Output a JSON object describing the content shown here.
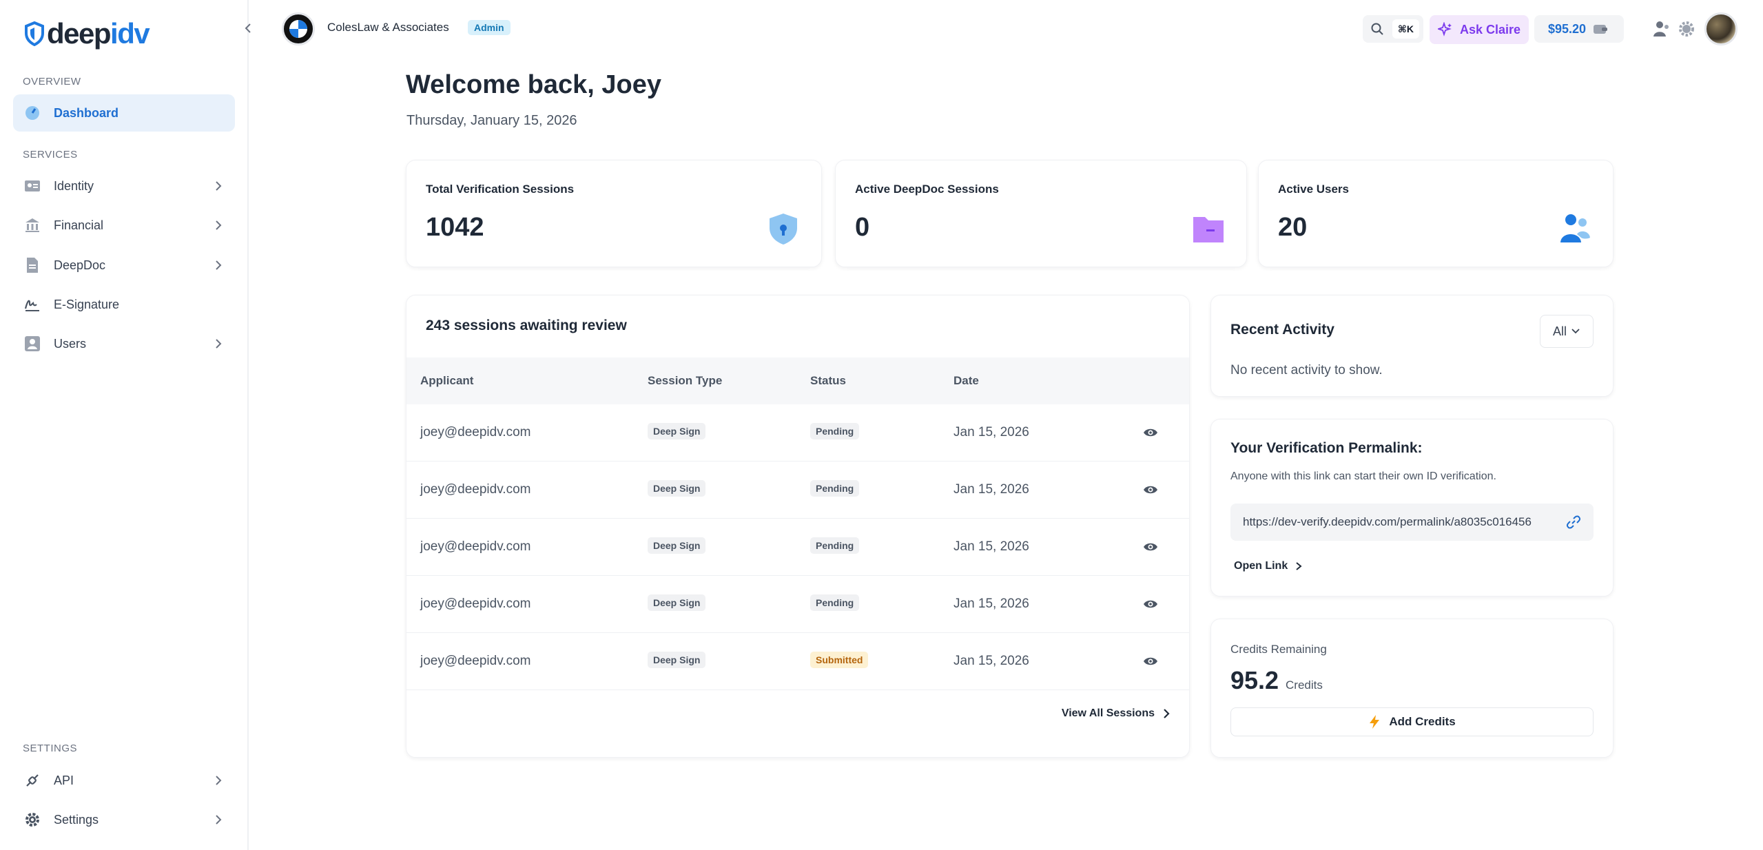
{
  "brand": {
    "logo_part1": "deep",
    "logo_part2": "idv"
  },
  "sidebar": {
    "overview_label": "OVERVIEW",
    "services_label": "SERVICES",
    "settings_label": "SETTINGS",
    "items": [
      {
        "label": "Dashboard",
        "icon": "gauge-icon"
      },
      {
        "label": "Identity",
        "icon": "id-card-icon"
      },
      {
        "label": "Financial",
        "icon": "bank-icon"
      },
      {
        "label": "DeepDoc",
        "icon": "document-icon"
      },
      {
        "label": "E-Signature",
        "icon": "signature-icon"
      },
      {
        "label": "Users",
        "icon": "user-icon"
      },
      {
        "label": "API",
        "icon": "plug-icon"
      },
      {
        "label": "Settings",
        "icon": "gear-icon"
      }
    ]
  },
  "topbar": {
    "org_name": "ColesLaw & Associates",
    "role_badge": "Admin",
    "search_shortcut": "⌘K",
    "ask_label": "Ask Claire",
    "credit_balance": "$95.20"
  },
  "main": {
    "welcome": "Welcome back, Joey",
    "date": "Thursday, January 15, 2026",
    "stats": [
      {
        "title": "Total Verification Sessions",
        "value": "1042",
        "color": "#8ec5f2"
      },
      {
        "title": "Active DeepDoc Sessions",
        "value": "0",
        "color": "#c084fc"
      },
      {
        "title": "Active Users",
        "value": "20",
        "color": "#1f7ae0"
      }
    ],
    "sessions": {
      "title": "243 sessions awaiting review",
      "columns": [
        "Applicant",
        "Session Type",
        "Status",
        "Date"
      ],
      "rows": [
        {
          "applicant": "joey@deepidv.com",
          "type": "Deep Sign",
          "status": "Pending",
          "date": "Jan 15, 2026"
        },
        {
          "applicant": "joey@deepidv.com",
          "type": "Deep Sign",
          "status": "Pending",
          "date": "Jan 15, 2026"
        },
        {
          "applicant": "joey@deepidv.com",
          "type": "Deep Sign",
          "status": "Pending",
          "date": "Jan 15, 2026"
        },
        {
          "applicant": "joey@deepidv.com",
          "type": "Deep Sign",
          "status": "Pending",
          "date": "Jan 15, 2026"
        },
        {
          "applicant": "joey@deepidv.com",
          "type": "Deep Sign",
          "status": "Submitted",
          "date": "Jan 15, 2026"
        }
      ],
      "view_all": "View All Sessions"
    },
    "activity": {
      "title": "Recent Activity",
      "filter": "All",
      "empty": "No recent activity to show."
    },
    "permalink": {
      "title": "Your Verification Permalink:",
      "subtitle": "Anyone with this link can start their own ID verification.",
      "url": "https://dev-verify.deepidv.com/permalink/a8035c016456",
      "open_label": "Open Link"
    },
    "credits": {
      "title": "Credits Remaining",
      "value": "95.2",
      "unit": "Credits",
      "add_label": "Add Credits"
    }
  }
}
